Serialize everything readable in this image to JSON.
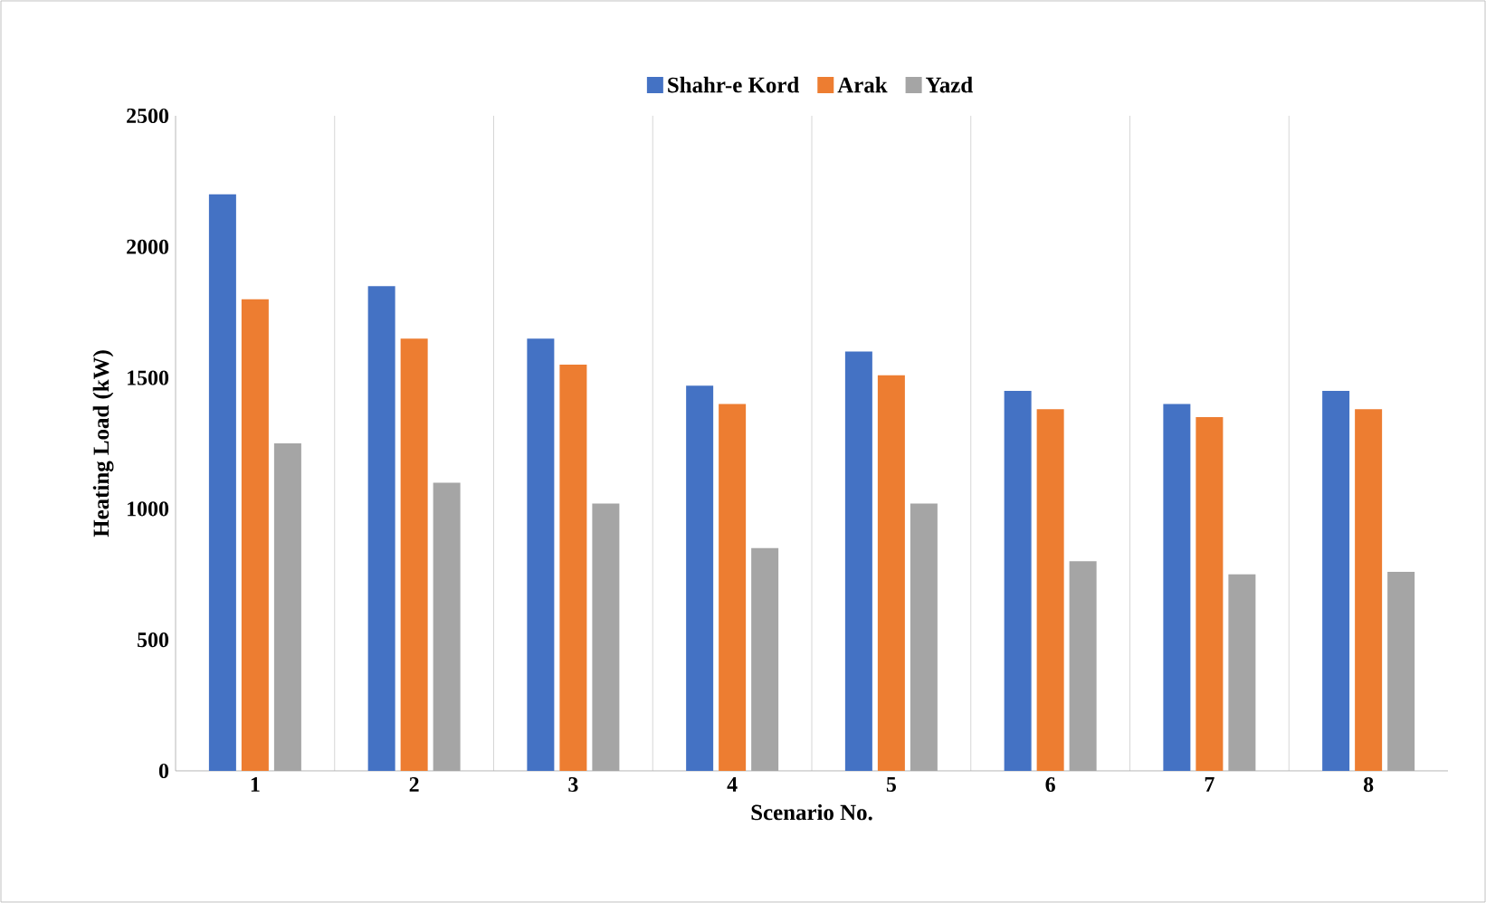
{
  "chart_data": {
    "type": "bar",
    "xlabel": "Scenario No.",
    "ylabel": "Heating Load (kW)",
    "categories": [
      "1",
      "2",
      "3",
      "4",
      "5",
      "6",
      "7",
      "8"
    ],
    "series": [
      {
        "name": "Shahr-e Kord",
        "color": "#4472c4",
        "values": [
          2200,
          1850,
          1650,
          1470,
          1600,
          1450,
          1400,
          1450
        ]
      },
      {
        "name": "Arak",
        "color": "#ed7d31",
        "values": [
          1800,
          1650,
          1550,
          1400,
          1510,
          1380,
          1350,
          1380
        ]
      },
      {
        "name": "Yazd",
        "color": "#a5a5a5",
        "values": [
          1250,
          1100,
          1020,
          850,
          1020,
          800,
          750,
          760
        ]
      }
    ],
    "ylim": [
      0,
      2500
    ],
    "yticks": [
      0,
      500,
      1000,
      1500,
      2000,
      2500
    ],
    "grid": "x",
    "legend": "top"
  }
}
